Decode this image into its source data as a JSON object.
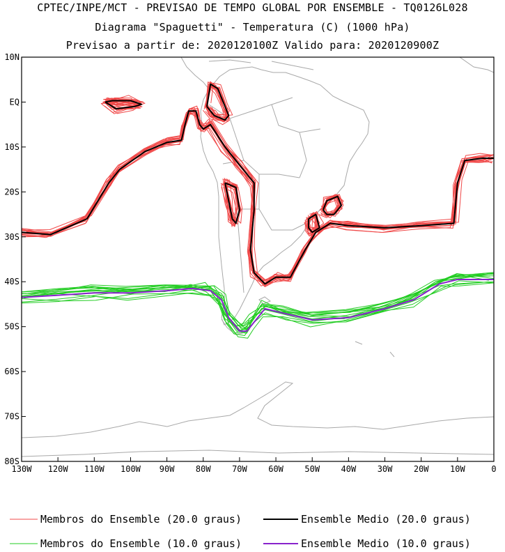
{
  "title": {
    "line1": "CPTEC/INPE/MCT - PREVISAO DE TEMPO GLOBAL POR ENSEMBLE - TQ0126L028",
    "line2": "Diagrama \"Spaguetti\" - Temperatura (C) (1000 hPa)",
    "line3": "Previsao a partir de: 2020120100Z  Valido para: 2020120900Z"
  },
  "axes": {
    "lon_ticks": [
      "130W",
      "120W",
      "110W",
      "100W",
      "90W",
      "80W",
      "70W",
      "60W",
      "50W",
      "40W",
      "30W",
      "20W",
      "10W",
      "0"
    ],
    "lat_ticks": [
      "10N",
      "EQ",
      "10S",
      "20S",
      "30S",
      "40S",
      "50S",
      "60S",
      "70S",
      "80S"
    ],
    "lon_range": [
      -130,
      0
    ],
    "lat_range": [
      -80,
      10
    ]
  },
  "legend": {
    "members_20": "Membros do Ensemble (20.0 graus)",
    "mean_20": "Ensemble Medio (20.0 graus)",
    "members_10": "Membros do Ensemble (10.0 graus)",
    "mean_10": "Ensemble Medio (10.0 graus)"
  },
  "colors": {
    "members_20": "#f04848",
    "mean_20": "#000000",
    "members_10": "#22cc22",
    "mean_10": "#8822cc",
    "coast": "#a8a8a8"
  },
  "isotherms": {
    "mean_20_main": [
      [
        -130,
        -29
      ],
      [
        -122,
        -29.5
      ],
      [
        -112,
        -26
      ],
      [
        -106,
        -18
      ],
      [
        -103,
        -15
      ],
      [
        -96,
        -11
      ],
      [
        -90,
        -9
      ],
      [
        -86,
        -8.5
      ],
      [
        -85,
        -5
      ],
      [
        -84,
        -2
      ],
      [
        -82,
        -2
      ],
      [
        -81,
        -5
      ],
      [
        -80,
        -6
      ],
      [
        -78,
        -5
      ],
      [
        -74,
        -10
      ],
      [
        -70,
        -14
      ],
      [
        -66,
        -18
      ],
      [
        -66,
        -24
      ],
      [
        -67,
        -33
      ],
      [
        -66,
        -38
      ],
      [
        -63,
        -40.5
      ],
      [
        -60,
        -39
      ],
      [
        -56,
        -39
      ],
      [
        -52,
        -33
      ],
      [
        -49,
        -29
      ],
      [
        -45,
        -27
      ],
      [
        -40,
        -27.5
      ],
      [
        -30,
        -28
      ],
      [
        -20,
        -27.5
      ],
      [
        -11,
        -27
      ],
      [
        -10,
        -18
      ],
      [
        -8,
        -13
      ],
      [
        -3,
        -12.5
      ],
      [
        0,
        -12.5
      ]
    ],
    "mean_20_pacific_island": [
      [
        -107,
        0
      ],
      [
        -104,
        -1.5
      ],
      [
        -99,
        -1
      ],
      [
        -97,
        -0.5
      ],
      [
        -100,
        0.3
      ],
      [
        -105,
        0.3
      ],
      [
        -107,
        0
      ]
    ],
    "mean_20_north_loop": [
      [
        -79,
        -1
      ],
      [
        -77,
        -3
      ],
      [
        -74,
        -4
      ],
      [
        -73,
        -3
      ],
      [
        -74,
        -1
      ],
      [
        -76,
        3
      ],
      [
        -78,
        4
      ],
      [
        -79,
        -1
      ]
    ],
    "mean_20_andes_loop": [
      [
        -74,
        -18
      ],
      [
        -73,
        -22
      ],
      [
        -72,
        -26
      ],
      [
        -71,
        -27
      ],
      [
        -70,
        -24
      ],
      [
        -71,
        -19
      ],
      [
        -74,
        -18
      ]
    ],
    "mean_20_brazil_loop": [
      [
        -47,
        -24
      ],
      [
        -46,
        -22
      ],
      [
        -43,
        -21
      ],
      [
        -42,
        -23
      ],
      [
        -44,
        -25
      ],
      [
        -46,
        -25
      ],
      [
        -47,
        -24
      ]
    ],
    "mean_20_brazil_loop2": [
      [
        -51,
        -26
      ],
      [
        -49,
        -25
      ],
      [
        -48,
        -28
      ],
      [
        -50,
        -29
      ],
      [
        -51,
        -28
      ],
      [
        -51,
        -26
      ]
    ],
    "mean_10_main": [
      [
        -130,
        -43.5
      ],
      [
        -120,
        -43
      ],
      [
        -110,
        -42.5
      ],
      [
        -100,
        -42.5
      ],
      [
        -90,
        -42
      ],
      [
        -83,
        -41.5
      ],
      [
        -78,
        -42
      ],
      [
        -75,
        -44
      ],
      [
        -73,
        -48
      ],
      [
        -70,
        -51
      ],
      [
        -68,
        -51
      ],
      [
        -66,
        -49
      ],
      [
        -63,
        -46
      ],
      [
        -58,
        -47
      ],
      [
        -50,
        -48.5
      ],
      [
        -40,
        -48
      ],
      [
        -30,
        -46
      ],
      [
        -22,
        -44
      ],
      [
        -15,
        -40.5
      ],
      [
        -10,
        -39.5
      ],
      [
        0,
        -39.5
      ]
    ]
  }
}
